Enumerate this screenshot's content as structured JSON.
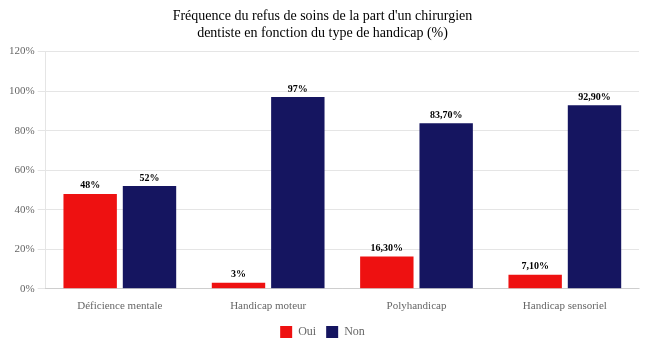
{
  "chart_data": {
    "type": "bar",
    "title": "Fréquence du refus de soins de la part d'un chirurgien\ndentiste en fonction du type de handicap (%)",
    "categories": [
      "Déficience mentale",
      "Handicap moteur",
      "Polyhandicap",
      "Handicap sensoriel"
    ],
    "series": [
      {
        "name": "Oui",
        "color": "#EE1111",
        "values": [
          48,
          3,
          16.3,
          7.1
        ],
        "value_labels": [
          "48%",
          "3%",
          "16,30%",
          "7,10%"
        ]
      },
      {
        "name": "Non",
        "color": "#151560",
        "values": [
          52,
          97,
          83.7,
          92.9
        ],
        "value_labels": [
          "52%",
          "97%",
          "83,70%",
          "92,90%"
        ]
      }
    ],
    "ylim": [
      0,
      120
    ],
    "yticks": [
      {
        "value": 0,
        "label": "0%"
      },
      {
        "value": 20,
        "label": "20%"
      },
      {
        "value": 40,
        "label": "40%"
      },
      {
        "value": 60,
        "label": "60%"
      },
      {
        "value": 80,
        "label": "80%"
      },
      {
        "value": 100,
        "label": "100%"
      },
      {
        "value": 120,
        "label": "120%"
      }
    ],
    "grid": true,
    "legend": "bottom",
    "data_labels": true
  }
}
